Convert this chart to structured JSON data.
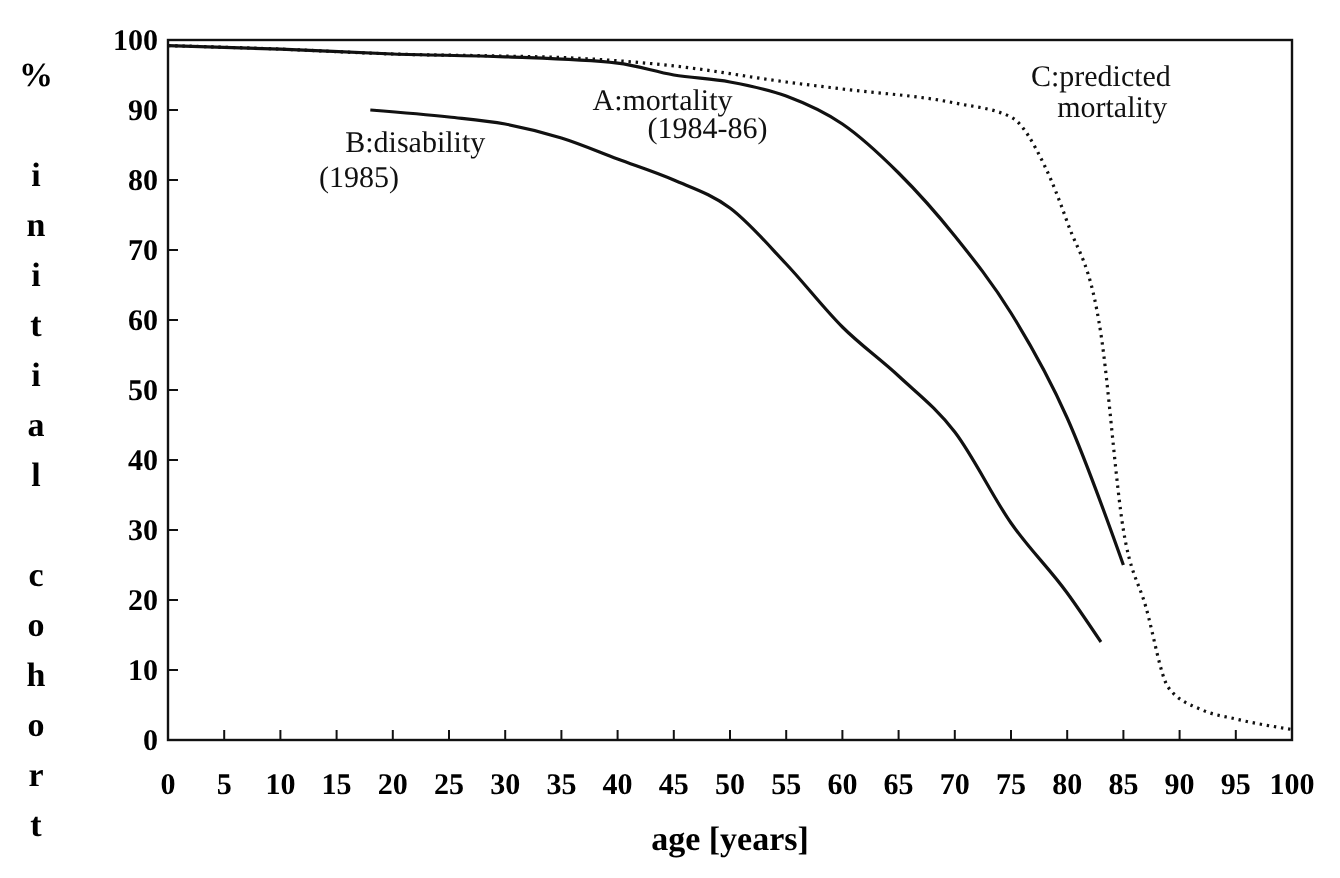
{
  "chart_data": {
    "type": "line",
    "xlabel": "age [years]",
    "ylabel": "% initial cohort",
    "xlim": [
      0,
      100
    ],
    "ylim": [
      0,
      100
    ],
    "xticks": [
      0,
      5,
      10,
      15,
      20,
      25,
      30,
      35,
      40,
      45,
      50,
      55,
      60,
      65,
      70,
      75,
      80,
      85,
      90,
      95,
      100
    ],
    "yticks": [
      0,
      10,
      20,
      30,
      40,
      50,
      60,
      70,
      80,
      90,
      100
    ],
    "grid": false,
    "marker": "none",
    "series": [
      {
        "name": "A:mortality (1984-86)",
        "color": "#111111",
        "line_style": "solid",
        "x": [
          0,
          10,
          20,
          30,
          40,
          45,
          50,
          55,
          60,
          65,
          70,
          75,
          80,
          85
        ],
        "values": [
          99.2,
          98.7,
          98,
          97.6,
          96.7,
          95,
          94,
          92,
          88,
          81,
          72,
          61,
          46,
          25
        ]
      },
      {
        "name": "B:disability (1985)",
        "color": "#111111",
        "line_style": "solid",
        "x": [
          18,
          25,
          30,
          35,
          40,
          45,
          50,
          55,
          60,
          65,
          70,
          75,
          80,
          83
        ],
        "values": [
          90,
          89,
          88,
          86,
          83,
          80,
          76,
          68,
          59,
          52,
          44,
          31,
          21,
          14
        ]
      },
      {
        "name": "C:predicted mortality",
        "color": "#111111",
        "line_style": "dotted",
        "x": [
          0,
          10,
          20,
          30,
          35,
          45,
          55,
          60,
          70,
          75,
          78,
          80,
          83,
          85,
          87,
          89,
          92,
          95,
          100
        ],
        "values": [
          99.2,
          98.7,
          98,
          97.7,
          97.5,
          96.3,
          94,
          93,
          91,
          89,
          82,
          74,
          58,
          30,
          19,
          7.5,
          4.3,
          3,
          1.5
        ]
      }
    ]
  }
}
